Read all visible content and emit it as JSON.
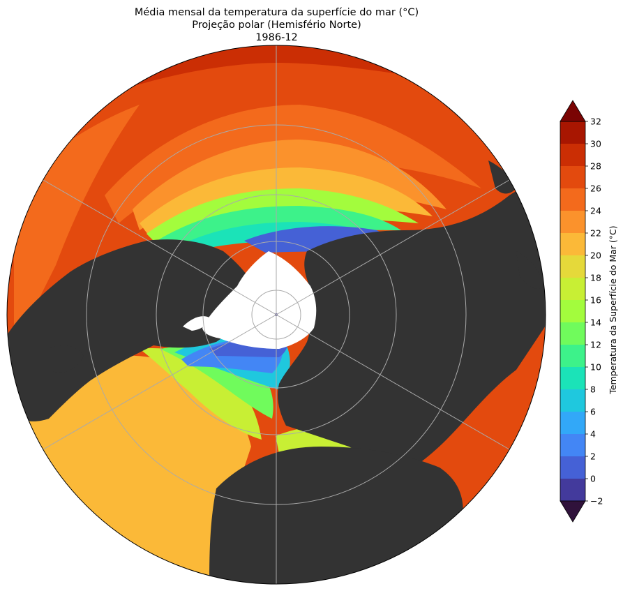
{
  "title": {
    "line1": "Média mensal da temperatura da superfície do mar (°C)",
    "line2": "Projeção polar (Hemisfério Norte)",
    "line3": "1986-12"
  },
  "colorbar": {
    "label": "Temperatura da Superfície do Mar (°C)",
    "ticks": [
      "32",
      "30",
      "28",
      "26",
      "24",
      "22",
      "20",
      "18",
      "16",
      "14",
      "12",
      "10",
      "8",
      "6",
      "4",
      "2",
      "0",
      "−2"
    ],
    "levels": [
      {
        "min": -2,
        "max": 0,
        "color": "#433a9c"
      },
      {
        "min": 0,
        "max": 2,
        "color": "#4561d6"
      },
      {
        "min": 2,
        "max": 4,
        "color": "#4386f5"
      },
      {
        "min": 4,
        "max": 6,
        "color": "#32a8f8"
      },
      {
        "min": 6,
        "max": 8,
        "color": "#1fc8de"
      },
      {
        "min": 8,
        "max": 10,
        "color": "#1be3b8"
      },
      {
        "min": 10,
        "max": 12,
        "color": "#3df28a"
      },
      {
        "min": 12,
        "max": 14,
        "color": "#70fb5c"
      },
      {
        "min": 14,
        "max": 16,
        "color": "#a3fc3d"
      },
      {
        "min": 16,
        "max": 18,
        "color": "#c8ef34"
      },
      {
        "min": 18,
        "max": 20,
        "color": "#e5d93a"
      },
      {
        "min": 20,
        "max": 22,
        "color": "#fbb938"
      },
      {
        "min": 22,
        "max": 24,
        "color": "#fb922c"
      },
      {
        "min": 24,
        "max": 26,
        "color": "#f36a1c"
      },
      {
        "min": 26,
        "max": 28,
        "color": "#e34a0e"
      },
      {
        "min": 28,
        "max": 30,
        "color": "#cb2e04"
      },
      {
        "min": 30,
        "max": 32,
        "color": "#a81601"
      }
    ],
    "under_color": "#30123b",
    "over_color": "#7a0403"
  },
  "map": {
    "projection": "north-polar-stereographic",
    "land_color": "#333333",
    "sea_ice_color": "#ffffff",
    "gridline_color": "#aaaaaa"
  }
}
